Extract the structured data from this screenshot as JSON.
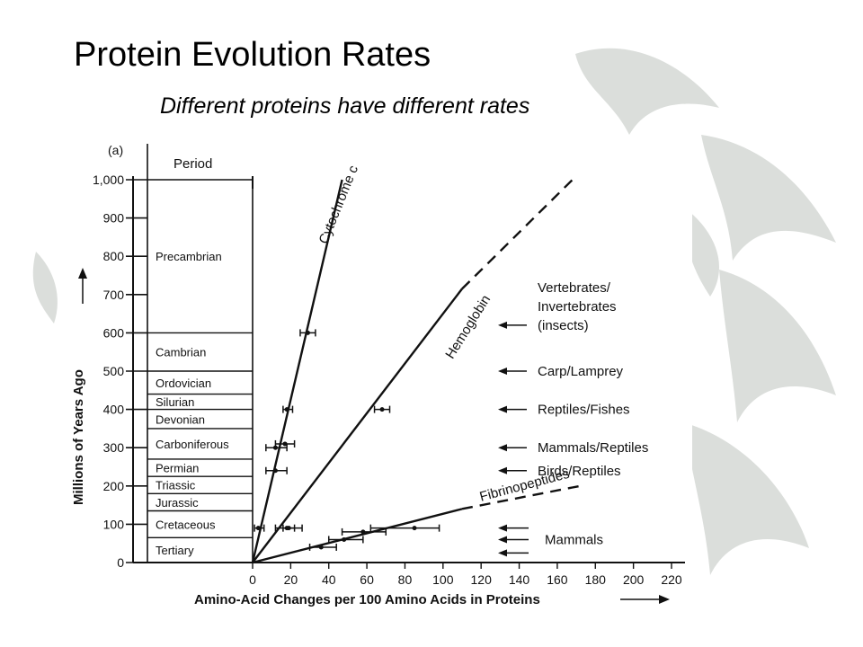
{
  "slide": {
    "title": "Protein Evolution Rates",
    "subtitle": "Different proteins have different rates"
  },
  "chart_data": {
    "type": "line",
    "panel_label": "(a)",
    "period_header": "Period",
    "xlabel": "Amino-Acid Changes per 100 Amino Acids in Proteins",
    "ylabel": "Millions of Years Ago",
    "xlim": [
      0,
      220
    ],
    "ylim": [
      0,
      1000
    ],
    "x_ticks": [
      0,
      20,
      40,
      60,
      80,
      100,
      120,
      140,
      160,
      180,
      200,
      220
    ],
    "y_ticks": [
      0,
      100,
      200,
      300,
      400,
      500,
      600,
      700,
      800,
      900,
      1000
    ],
    "y_tick_labels": [
      "0",
      "100",
      "200",
      "300",
      "400",
      "500",
      "600",
      "700",
      "800",
      "900",
      "1,000"
    ],
    "periods": [
      {
        "name": "Tertiary",
        "start": 0,
        "end": 65
      },
      {
        "name": "Cretaceous",
        "start": 65,
        "end": 135
      },
      {
        "name": "Jurassic",
        "start": 135,
        "end": 180
      },
      {
        "name": "Triassic",
        "start": 180,
        "end": 225
      },
      {
        "name": "Permian",
        "start": 225,
        "end": 270
      },
      {
        "name": "Carboniferous",
        "start": 270,
        "end": 350
      },
      {
        "name": "Devonian",
        "start": 350,
        "end": 400
      },
      {
        "name": "Silurian",
        "start": 400,
        "end": 440
      },
      {
        "name": "Ordovician",
        "start": 440,
        "end": 500
      },
      {
        "name": "Cambrian",
        "start": 500,
        "end": 600
      },
      {
        "name": "Precambrian",
        "start": 600,
        "end": 1000
      }
    ],
    "series": [
      {
        "name": "Cytochrome c",
        "line": {
          "solid_to": [
            47,
            1000
          ]
        },
        "points": [
          {
            "x": 3,
            "y": 90,
            "xerr": [
              1,
              6
            ]
          },
          {
            "x": 18,
            "y": 90,
            "xerr": [
              12,
              26
            ]
          },
          {
            "x": 12,
            "y": 240,
            "xerr": [
              7,
              18
            ]
          },
          {
            "x": 12,
            "y": 300,
            "xerr": [
              7,
              18
            ]
          },
          {
            "x": 17,
            "y": 310,
            "xerr": [
              12,
              22
            ]
          },
          {
            "x": 18,
            "y": 400,
            "xerr": [
              16,
              21
            ]
          },
          {
            "x": 29,
            "y": 600,
            "xerr": [
              25,
              33
            ]
          }
        ]
      },
      {
        "name": "Hemoglobin",
        "line": {
          "solid_to": [
            110,
            715
          ],
          "dashed_to": [
            168,
            1000
          ]
        },
        "points": [
          {
            "x": 19,
            "y": 90,
            "xerr": [
              16,
              22
            ]
          },
          {
            "x": 68,
            "y": 400,
            "xerr": [
              64,
              72
            ]
          }
        ]
      },
      {
        "name": "Fibrinopeptides",
        "line": {
          "solid_to": [
            110,
            140
          ],
          "dashed_to": [
            172,
            200
          ]
        },
        "points": [
          {
            "x": 36,
            "y": 40,
            "xerr": [
              30,
              44
            ]
          },
          {
            "x": 48,
            "y": 60,
            "xerr": [
              40,
              58
            ]
          },
          {
            "x": 58,
            "y": 80,
            "xerr": [
              47,
              70
            ]
          },
          {
            "x": 85,
            "y": 90,
            "xerr": [
              62,
              98
            ]
          }
        ]
      }
    ],
    "divergences": [
      {
        "label": "Vertebrates/ Invertebrates (insects)",
        "lines": [
          "Vertebrates/",
          "Invertebrates",
          "(insects)"
        ],
        "y": 620
      },
      {
        "label": "Carp/Lamprey",
        "lines": [
          "Carp/Lamprey"
        ],
        "y": 500
      },
      {
        "label": "Reptiles/Fishes",
        "lines": [
          "Reptiles/Fishes"
        ],
        "y": 400
      },
      {
        "label": "Mammals/Reptiles",
        "lines": [
          "Mammals/Reptiles"
        ],
        "y": 300
      },
      {
        "label": "Birds/Reptiles",
        "lines": [
          "Birds/Reptiles"
        ],
        "y": 240
      },
      {
        "label": "Mammals",
        "lines": [
          "Mammals"
        ],
        "arrows_y": [
          90,
          60,
          25
        ]
      }
    ],
    "grid": false,
    "legend": "none"
  }
}
